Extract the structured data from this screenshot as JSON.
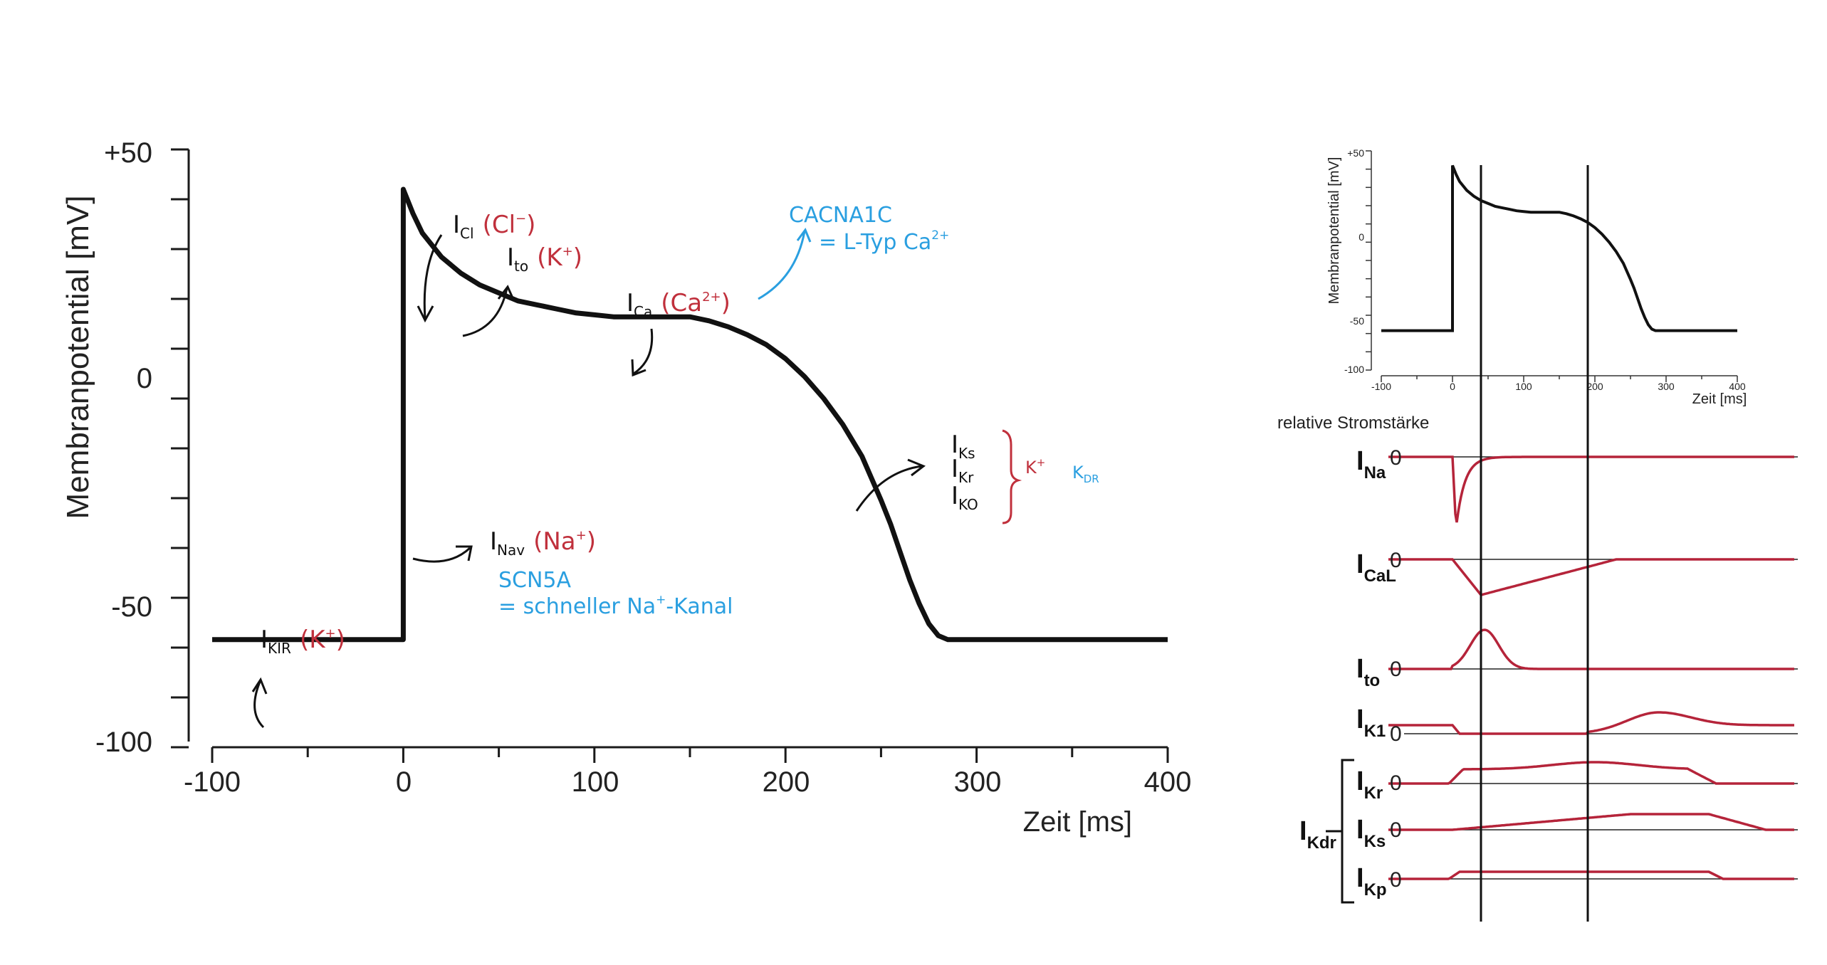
{
  "colors": {
    "curve": "#111111",
    "current": "#b5243a",
    "annotation_black": "#111111",
    "annotation_red": "#c0303c",
    "annotation_blue": "#2a9fe0"
  },
  "chart_data": [
    {
      "type": "line",
      "xlabel": "Zeit [ms]",
      "ylabel": "Membranpotential [mV]",
      "xlim": [
        -100,
        400
      ],
      "ylim": [
        -100,
        50
      ],
      "x_tick_labels": [
        "-100",
        "0",
        "100",
        "200",
        "300",
        "400"
      ],
      "y_tick_labels": [
        "+50",
        "0",
        "-50",
        "-100"
      ],
      "series": [
        {
          "x": [
            -100,
            0,
            0,
            5,
            10,
            20,
            30,
            40,
            50,
            60,
            70,
            80,
            90,
            100,
            110,
            120,
            130,
            140,
            150,
            160,
            170,
            180,
            190,
            200,
            210,
            220,
            230,
            240,
            250,
            255,
            260,
            265,
            270,
            275,
            280,
            285,
            290,
            300,
            400
          ],
          "y": [
            -73,
            -73,
            40,
            34,
            29,
            23,
            19,
            16,
            14,
            12,
            11,
            10,
            9,
            8.5,
            8,
            8,
            8,
            8,
            8,
            7,
            5.5,
            3.5,
            1,
            -2.5,
            -7,
            -12.5,
            -19,
            -27,
            -38,
            -44,
            -51,
            -58,
            -64,
            -69,
            -72,
            -73,
            -73,
            -73,
            -73
          ]
        }
      ],
      "annotations": {
        "icl": {
          "label": "I",
          "sub": "Cl",
          "ion": "(Cl",
          "ion_sup": "−",
          "ion_end": ")"
        },
        "ito": {
          "label": "I",
          "sub": "to",
          "ion": "(K",
          "ion_sup": "+",
          "ion_end": ")"
        },
        "ica": {
          "label": "I",
          "sub": "Ca",
          "ion": "(Ca",
          "ion_sup": "2+",
          "ion_end": ")"
        },
        "cacna": {
          "line1": "CACNA1C",
          "line2": "= L-Typ Ca",
          "sup": "2+"
        },
        "inav": {
          "label": "I",
          "sub": "Nav",
          "ion": "(Na",
          "ion_sup": "+",
          "ion_end": ")"
        },
        "scn5a": {
          "line1": "SCN5A",
          "line2": "= schneller Na",
          "sup": "+",
          "line2_end": "-Kanal"
        },
        "ikir": {
          "label": "I",
          "sub": "KIR",
          "ion": "(K",
          "ion_sup": "+",
          "ion_end": ")"
        },
        "ik": {
          "ks_sub": "Ks",
          "kr_sub": "Kr",
          "ko_sub": "KO",
          "label": "I",
          "kplus": "K",
          "kplus_sup": "+",
          "kdr": "K",
          "kdr_sub": "DR"
        }
      }
    },
    {
      "type": "line",
      "xlabel": "Zeit [ms]",
      "ylabel": "Membranpotential [mV]",
      "xlim": [
        -100,
        400
      ],
      "ylim": [
        -100,
        50
      ],
      "x_tick_labels": [
        "-100",
        "0",
        "100",
        "200",
        "300",
        "400"
      ],
      "y_tick_labels": [
        "+50",
        "0",
        "-50",
        "-100"
      ],
      "markers_ms": [
        40,
        190
      ]
    },
    {
      "type": "line",
      "title": "relative Stromstärke",
      "zero_label": "0",
      "series": [
        {
          "name": "I",
          "sub": "Na"
        },
        {
          "name": "I",
          "sub": "CaL"
        },
        {
          "name": "I",
          "sub": "to"
        },
        {
          "name": "I",
          "sub": "K1"
        },
        {
          "name": "I",
          "sub": "Kr"
        },
        {
          "name": "I",
          "sub": "Ks"
        },
        {
          "name": "I",
          "sub": "Kp"
        }
      ],
      "group_label": {
        "name": "I",
        "sub": "Kdr"
      }
    }
  ]
}
